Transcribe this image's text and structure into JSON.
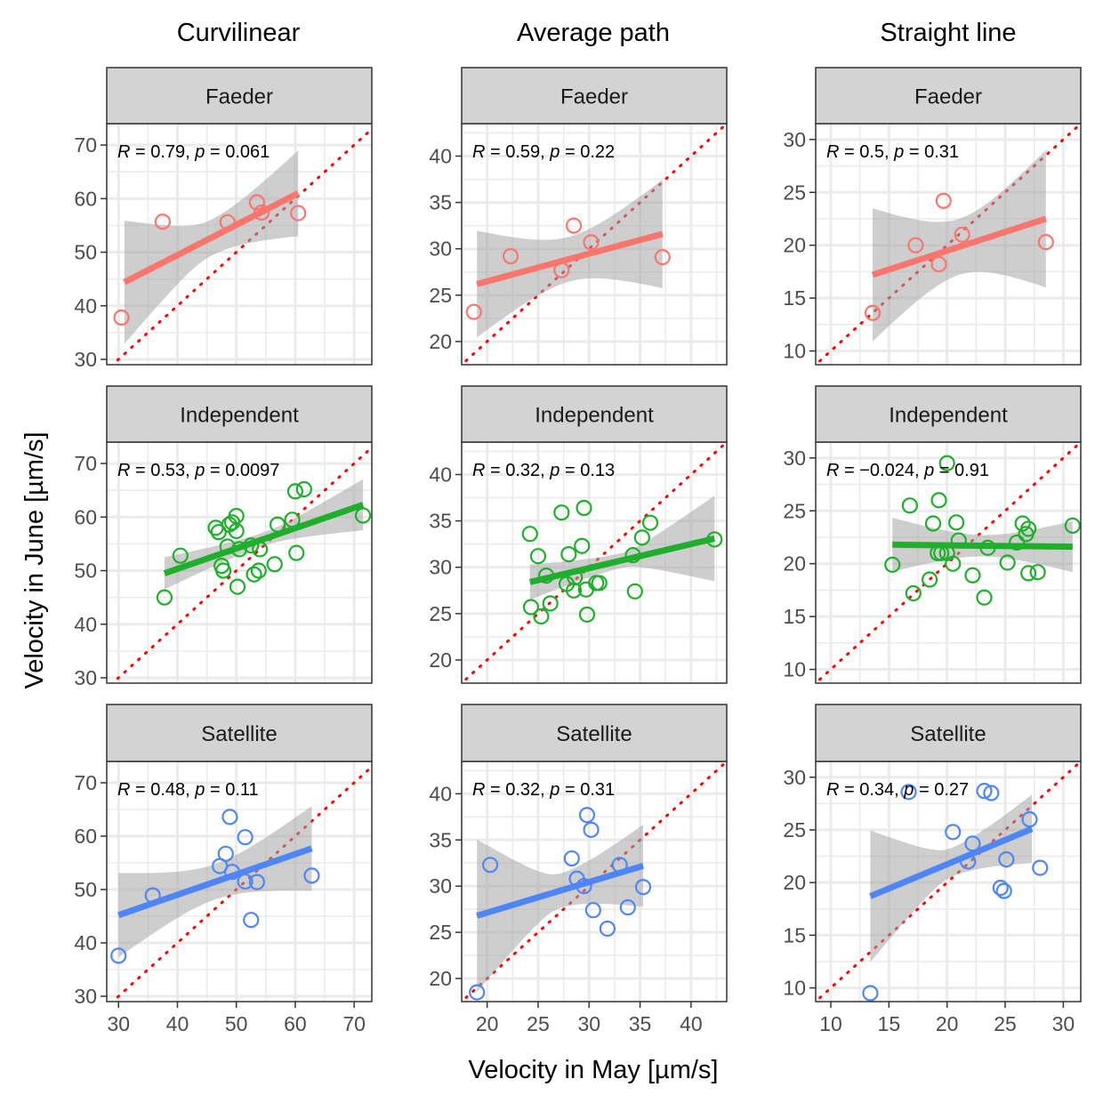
{
  "figure": {
    "column_titles": [
      "Curvilinear",
      "Average path",
      "Straight line"
    ],
    "row_strips": [
      "Faeder",
      "Independent",
      "Satellite"
    ],
    "xlabel": "Velocity in May [µm/s]",
    "ylabel": "Velocity in June [µm/s]",
    "colors": {
      "Faeder": "#F8766D",
      "Independent": "#1FAF2C",
      "Satellite": "#4F86F7",
      "identity_line": "#FF0000",
      "ribbon": "#A6A6A6",
      "strip_bg": "#D3D3D3"
    }
  },
  "columns": [
    {
      "xlim": [
        28,
        73
      ],
      "xticks": [
        30,
        40,
        50,
        60,
        70
      ],
      "ylim": [
        29,
        74
      ],
      "yticks": [
        30,
        40,
        50,
        60,
        70
      ]
    },
    {
      "xlim": [
        17.5,
        43.5
      ],
      "xticks": [
        20,
        25,
        30,
        35,
        40
      ],
      "ylim": [
        17.5,
        43.5
      ],
      "yticks": [
        20,
        25,
        30,
        35,
        40
      ]
    },
    {
      "xlim": [
        8.7,
        31.5
      ],
      "xticks": [
        10,
        15,
        20,
        25,
        30
      ],
      "ylim": [
        8.7,
        31.5
      ],
      "yticks": [
        10,
        15,
        20,
        25,
        30
      ]
    }
  ],
  "chart_data": [
    {
      "type": "scatter",
      "column": "Curvilinear",
      "group": "Faeder",
      "stat_text": {
        "r": "0.79",
        "p": "0.061"
      },
      "points": [
        [
          30.5,
          37.8
        ],
        [
          37.5,
          55.7
        ],
        [
          48.5,
          55.6
        ],
        [
          53.5,
          59.3
        ],
        [
          54.3,
          57.4
        ],
        [
          60.5,
          57.3
        ]
      ],
      "fit": {
        "x": [
          31,
          60.5
        ],
        "y": [
          44.4,
          61
        ],
        "ci_lo": [
          33,
          51
        ],
        "ci_hi": [
          56,
          67
        ]
      }
    },
    {
      "type": "scatter",
      "column": "Average path",
      "group": "Faeder",
      "stat_text": {
        "r": "0.59",
        "p": "0.22"
      },
      "points": [
        [
          18.7,
          23.2
        ],
        [
          22.3,
          29.2
        ],
        [
          27.3,
          27.7
        ],
        [
          28.5,
          32.5
        ],
        [
          30.2,
          30.7
        ],
        [
          37.2,
          29.1
        ]
      ],
      "fit": {
        "x": [
          19,
          37.2
        ],
        "y": [
          26.2,
          31.6
        ],
        "ci_lo": [
          20.5,
          25.8
        ],
        "ci_hi": [
          32,
          37.5
        ]
      }
    },
    {
      "type": "scatter",
      "column": "Straight line",
      "group": "Faeder",
      "stat_text": {
        "r": "0.5",
        "p": "0.31"
      },
      "points": [
        [
          13.6,
          13.6
        ],
        [
          17.3,
          20
        ],
        [
          19.3,
          18.2
        ],
        [
          19.7,
          24.2
        ],
        [
          21.3,
          21
        ],
        [
          28.5,
          20.3
        ]
      ],
      "fit": {
        "x": [
          13.6,
          28.5
        ],
        "y": [
          17.2,
          22.5
        ],
        "ci_lo": [
          11,
          16
        ],
        "ci_hi": [
          23.6,
          29
        ]
      }
    },
    {
      "type": "scatter",
      "column": "Curvilinear",
      "group": "Independent",
      "stat_text": {
        "r": "0.53",
        "p": "0.0097"
      },
      "points": [
        [
          37.8,
          45
        ],
        [
          40.5,
          52.8
        ],
        [
          46.5,
          58
        ],
        [
          47,
          57.2
        ],
        [
          47.5,
          50.9
        ],
        [
          47.8,
          50
        ],
        [
          48.5,
          54.5
        ],
        [
          48.8,
          58.6
        ],
        [
          49.3,
          59
        ],
        [
          50,
          57.4
        ],
        [
          50,
          60.2
        ],
        [
          50.2,
          47
        ],
        [
          50.5,
          54
        ],
        [
          52.5,
          54.7
        ],
        [
          53,
          49.3
        ],
        [
          53.8,
          50
        ],
        [
          54,
          54
        ],
        [
          56.5,
          51.2
        ],
        [
          57,
          58.6
        ],
        [
          59.5,
          59.5
        ],
        [
          60,
          64.8
        ],
        [
          60.2,
          53.3
        ],
        [
          61.5,
          65.2
        ],
        [
          71.5,
          60.3
        ]
      ],
      "fit": {
        "x": [
          37.8,
          71.5
        ],
        "y": [
          49.5,
          62.3
        ],
        "ci_lo": [
          46.5,
          57.5
        ],
        "ci_hi": [
          52.5,
          67
        ]
      }
    },
    {
      "type": "scatter",
      "column": "Average path",
      "group": "Independent",
      "stat_text": {
        "r": "0.32",
        "p": "0.13"
      },
      "points": [
        [
          24.2,
          33.6
        ],
        [
          24.3,
          25.7
        ],
        [
          25,
          31.2
        ],
        [
          25.3,
          24.7
        ],
        [
          25.8,
          29.1
        ],
        [
          26.2,
          26.1
        ],
        [
          27.3,
          35.9
        ],
        [
          27.8,
          28.2
        ],
        [
          28,
          31.4
        ],
        [
          28.5,
          27.5
        ],
        [
          28.6,
          28.9
        ],
        [
          29.3,
          32.3
        ],
        [
          29.5,
          36.4
        ],
        [
          29.7,
          27.6
        ],
        [
          29.8,
          24.9
        ],
        [
          30.7,
          28.3
        ],
        [
          31,
          28.3
        ],
        [
          34.3,
          31.3
        ],
        [
          34.5,
          27.4
        ],
        [
          35.2,
          33.2
        ],
        [
          36,
          34.8
        ],
        [
          42.3,
          33
        ]
      ],
      "fit": {
        "x": [
          24.2,
          42.3
        ],
        "y": [
          28.4,
          33.1
        ],
        "ci_lo": [
          26.5,
          28.5
        ],
        "ci_hi": [
          30.3,
          37.7
        ]
      }
    },
    {
      "type": "scatter",
      "column": "Straight line",
      "group": "Independent",
      "stat_text": {
        "r": "−0.024",
        "p": "0.91"
      },
      "points": [
        [
          15.3,
          19.9
        ],
        [
          16.8,
          25.5
        ],
        [
          17.1,
          17.2
        ],
        [
          18.5,
          18.5
        ],
        [
          18.8,
          23.8
        ],
        [
          19.2,
          21
        ],
        [
          19.3,
          26
        ],
        [
          19.5,
          21
        ],
        [
          20,
          29.5
        ],
        [
          20,
          21
        ],
        [
          20.5,
          20
        ],
        [
          20.8,
          23.9
        ],
        [
          21,
          22.2
        ],
        [
          22.2,
          18.9
        ],
        [
          23.2,
          16.8
        ],
        [
          23.5,
          21.5
        ],
        [
          25.2,
          20.1
        ],
        [
          26,
          22
        ],
        [
          26.5,
          23.8
        ],
        [
          26.8,
          22.8
        ],
        [
          27,
          23.3
        ],
        [
          27,
          19.1
        ],
        [
          27.8,
          19.2
        ],
        [
          30.8,
          23.6
        ]
      ],
      "fit": {
        "x": [
          15.3,
          30.8
        ],
        "y": [
          21.8,
          21.6
        ],
        "ci_lo": [
          19.3,
          19.2
        ],
        "ci_hi": [
          24.4,
          24
        ]
      }
    },
    {
      "type": "scatter",
      "column": "Curvilinear",
      "group": "Satellite",
      "stat_text": {
        "r": "0.48",
        "p": "0.11"
      },
      "points": [
        [
          30,
          37.6
        ],
        [
          35.8,
          48.9
        ],
        [
          47.2,
          54.4
        ],
        [
          48.2,
          56.7
        ],
        [
          48.9,
          63.6
        ],
        [
          49.3,
          53.3
        ],
        [
          51.5,
          51.5
        ],
        [
          51.5,
          59.8
        ],
        [
          52.5,
          44.3
        ],
        [
          53.5,
          51.4
        ],
        [
          62.8,
          52.6
        ]
      ],
      "fit": {
        "x": [
          30,
          62.8
        ],
        "y": [
          45.2,
          57.7
        ],
        "ci_lo": [
          39.5,
          49.8
        ],
        "ci_hi": [
          55.3,
          65.7
        ]
      }
    },
    {
      "type": "scatter",
      "column": "Average path",
      "group": "Satellite",
      "stat_text": {
        "r": "0.32",
        "p": "0.31"
      },
      "points": [
        [
          19,
          18.5
        ],
        [
          20.3,
          32.3
        ],
        [
          28.3,
          33
        ],
        [
          28.8,
          30.8
        ],
        [
          29.5,
          30
        ],
        [
          29.8,
          37.7
        ],
        [
          30.2,
          36.1
        ],
        [
          30.4,
          27.4
        ],
        [
          31.8,
          25.4
        ],
        [
          33,
          32.3
        ],
        [
          33.8,
          27.7
        ],
        [
          35.3,
          29.9
        ]
      ],
      "fit": {
        "x": [
          19,
          35.3
        ],
        "y": [
          26.8,
          32.2
        ],
        "ci_lo": [
          18.6,
          27.7
        ],
        "ci_hi": [
          35.1,
          36.6
        ]
      }
    },
    {
      "type": "scatter",
      "column": "Straight line",
      "group": "Satellite",
      "stat_text": {
        "r": "0.34",
        "p": "0.27"
      },
      "points": [
        [
          13.4,
          9.5
        ],
        [
          16.7,
          28.6
        ],
        [
          20.5,
          24.8
        ],
        [
          21.8,
          22
        ],
        [
          22.2,
          23.7
        ],
        [
          23.2,
          28.7
        ],
        [
          23.8,
          28.5
        ],
        [
          24.6,
          19.5
        ],
        [
          24.9,
          19.2
        ],
        [
          25.1,
          22.2
        ],
        [
          27.1,
          26
        ],
        [
          28,
          21.4
        ]
      ],
      "fit": {
        "x": [
          13.4,
          27.3
        ],
        "y": [
          18.7,
          25.1
        ],
        "ci_lo": [
          12.5,
          22
        ],
        "ci_hi": [
          25,
          28.5
        ]
      }
    }
  ]
}
